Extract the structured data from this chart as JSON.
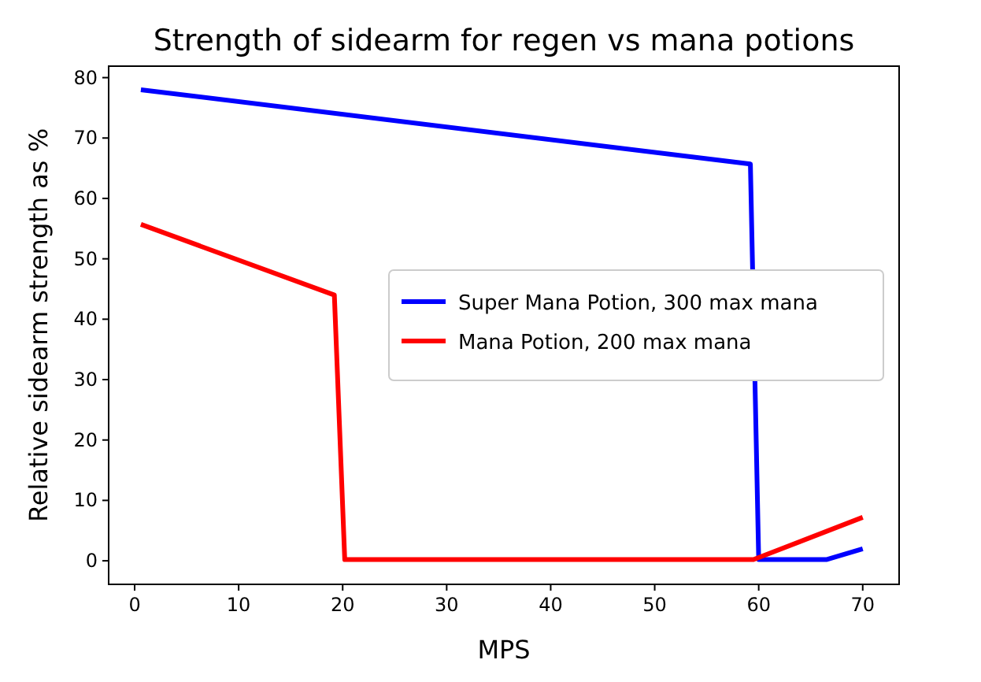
{
  "chart_data": {
    "type": "line",
    "title": "Strength of sidearm for regen vs mana potions",
    "xlabel": "MPS",
    "ylabel": "Relative sidearm strength as %",
    "xlim": [
      -2.5,
      73.5
    ],
    "xticks": [
      0,
      10,
      20,
      30,
      40,
      50,
      60,
      70
    ],
    "ylim": [
      -3.9,
      81.9
    ],
    "yticks": [
      0,
      10,
      20,
      30,
      40,
      50,
      60,
      70,
      80
    ],
    "series": [
      {
        "name": "Super Mana Potion, 300 max mana",
        "color": "#0000ff",
        "x": [
          0.6,
          59.2,
          60,
          66.5,
          70
        ],
        "values": [
          78,
          65.7,
          0.2,
          0.2,
          2
        ]
      },
      {
        "name": "Mana Potion, 200 max mana",
        "color": "#ff0000",
        "x": [
          0.6,
          19.2,
          20.2,
          59.5,
          70
        ],
        "values": [
          55.7,
          44,
          0.2,
          0.2,
          7.2
        ]
      }
    ],
    "legend": "center right",
    "grid": false
  }
}
